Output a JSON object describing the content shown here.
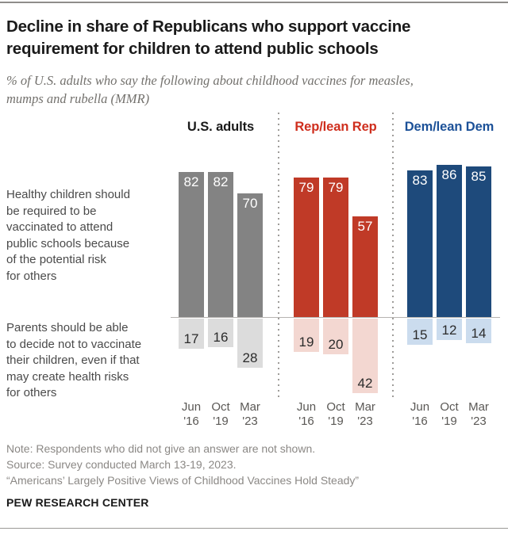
{
  "header": {
    "title": "Decline in share of Republicans who support vaccine\nrequirement for children to attend public schools",
    "subtitle": "% of U.S. adults who say the following about childhood vaccines for measles,\nmumps and rubella (MMR)"
  },
  "row_labels": {
    "top": "Healthy children should\nbe required to be\nvaccinated to attend\npublic schools because\nof the potential risk\nfor others",
    "bottom": "Parents should be able\nto decide not to vaccinate\ntheir children, even if that\nmay create health risks\nfor others"
  },
  "chart_data": {
    "type": "bar",
    "unit": "percent of U.S. adults",
    "categories": [
      "Jun '16",
      "Oct '19",
      "Mar '23"
    ],
    "series": [
      {
        "key": "up",
        "name": "Healthy children should be required to be vaccinated to attend public schools because of the potential risk for others"
      },
      {
        "key": "down",
        "name": "Parents should be able to decide not to vaccinate their children, even if that may create health risks for others"
      }
    ],
    "baseline": 0,
    "layout_hint": "diverging bars: support above baseline, parental choice below; three party groups separated by dotted lines",
    "groups": [
      {
        "label": "U.S. adults",
        "header_color": "#1a1a1a",
        "color": "#838383",
        "color_light": "#dcdcdc",
        "up": [
          82,
          82,
          70
        ],
        "down": [
          17,
          16,
          28
        ]
      },
      {
        "label": "Rep/lean Rep",
        "header_color": "#cf2e1d",
        "color": "#c03a27",
        "color_light": "#f3d7d1",
        "up": [
          79,
          79,
          57
        ],
        "down": [
          19,
          20,
          42
        ]
      },
      {
        "label": "Dem/lean Dem",
        "header_color": "#1c5198",
        "color": "#1e4a7b",
        "color_light": "#cbdcee",
        "up": [
          83,
          86,
          85
        ],
        "down": [
          15,
          12,
          14
        ]
      }
    ]
  },
  "footer": {
    "note": "Note: Respondents who did not give an answer are not shown.",
    "source": "Source: Survey conducted March 13-19, 2023.",
    "report": "“Americans’ Largely Positive Views of Childhood Vaccines Hold Steady”",
    "brand": "PEW RESEARCH CENTER"
  }
}
